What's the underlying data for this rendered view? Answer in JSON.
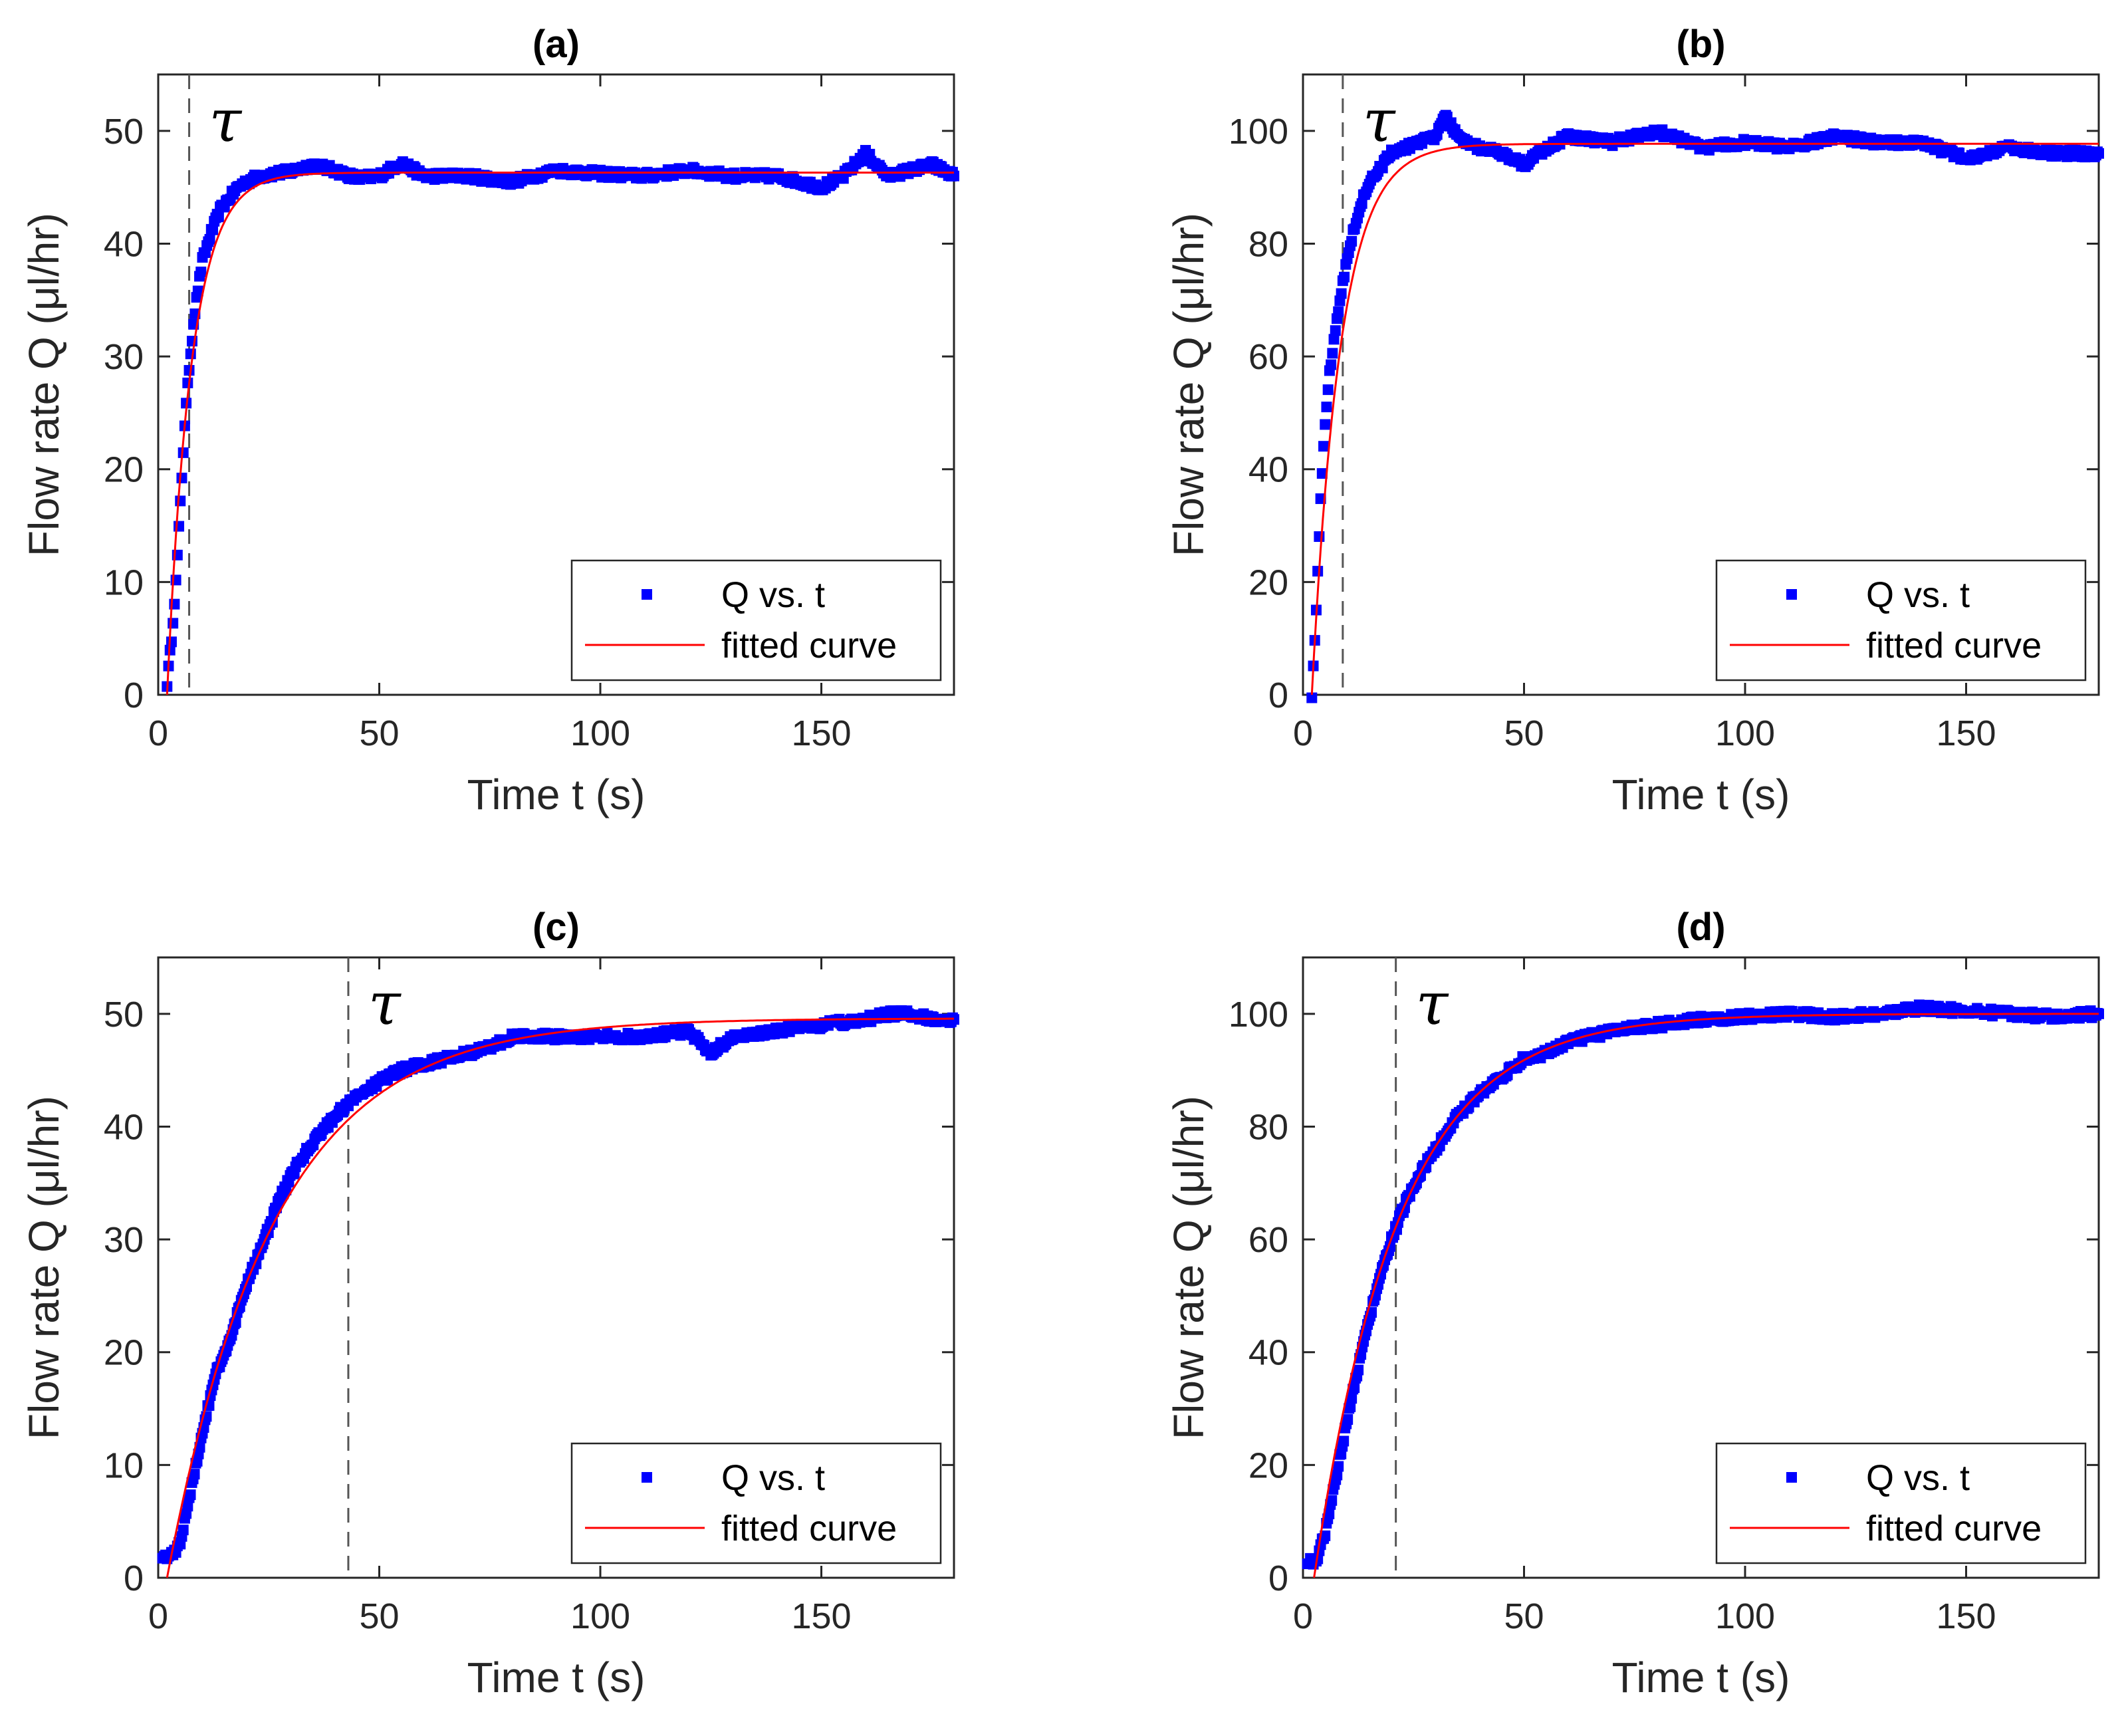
{
  "chart_data": [
    {
      "type": "scatter",
      "title": "(a)",
      "xlabel": "Time t (s)",
      "ylabel": "Flow rate Q (μl/hr)",
      "xlim": [
        0,
        180
      ],
      "ylim": [
        0,
        55
      ],
      "xticks": [
        0,
        50,
        100,
        150
      ],
      "yticks": [
        0,
        10,
        20,
        30,
        40,
        50
      ],
      "tau": 7,
      "tau_label": "τ",
      "series": [
        {
          "name": "Q vs. t",
          "color": "#0000ff",
          "x": [
            2,
            3,
            4,
            5,
            6,
            7,
            8,
            9,
            10,
            12,
            14,
            16,
            18,
            20,
            23,
            26,
            30,
            35,
            40,
            45,
            50,
            55,
            60,
            70,
            80,
            90,
            100,
            110,
            120,
            130,
            140,
            150,
            155,
            160,
            165,
            170,
            175,
            180
          ],
          "values": [
            1,
            5,
            10,
            17,
            24,
            29,
            33,
            36,
            38.5,
            41,
            43,
            44,
            45,
            45.5,
            46,
            46.2,
            46.4,
            47,
            46.5,
            45.8,
            46,
            47.2,
            46,
            46,
            45.5,
            46.5,
            46.2,
            46,
            46.5,
            46,
            46,
            45,
            46,
            48,
            46,
            46.5,
            47,
            46
          ]
        },
        {
          "name": "fitted curve",
          "color": "#ff0000",
          "model": "exp",
          "Qmax": 46.3,
          "t0": 2,
          "tau": 5.5
        }
      ],
      "legend": {
        "position": "bottom-right",
        "entries": [
          "Q vs. t",
          "fitted curve"
        ]
      }
    },
    {
      "type": "scatter",
      "title": "(b)",
      "xlabel": "Time t (s)",
      "ylabel": "Flow rate Q (μl/hr)",
      "xlim": [
        0,
        180
      ],
      "ylim": [
        0,
        110
      ],
      "xticks": [
        0,
        50,
        100,
        150
      ],
      "yticks": [
        0,
        20,
        40,
        60,
        80,
        100
      ],
      "tau": 9,
      "tau_label": "τ",
      "series": [
        {
          "name": "Q vs. t",
          "color": "#0000ff",
          "x": [
            2,
            3,
            4,
            5,
            6,
            7,
            8,
            9,
            10,
            12,
            14,
            16,
            18,
            20,
            23,
            26,
            30,
            32,
            35,
            40,
            45,
            50,
            55,
            60,
            70,
            80,
            90,
            100,
            110,
            120,
            130,
            140,
            150,
            160,
            170,
            180
          ],
          "values": [
            0,
            15,
            35,
            48,
            57,
            63,
            68,
            73,
            78,
            84,
            89,
            92,
            94,
            96,
            97,
            98,
            99,
            103,
            99,
            97,
            96,
            94,
            97,
            99,
            98,
            100,
            97,
            98,
            97,
            99,
            98,
            98,
            95,
            97,
            96,
            96
          ]
        },
        {
          "name": "fitted curve",
          "color": "#ff0000",
          "model": "exp",
          "Qmax": 97.7,
          "t0": 2,
          "tau": 6.5
        }
      ],
      "legend": {
        "position": "bottom-right",
        "entries": [
          "Q vs. t",
          "fitted curve"
        ]
      }
    },
    {
      "type": "scatter",
      "title": "(c)",
      "xlabel": "Time t (s)",
      "ylabel": "Flow rate Q (μl/hr)",
      "xlim": [
        0,
        180
      ],
      "ylim": [
        0,
        55
      ],
      "xticks": [
        0,
        50,
        100,
        150
      ],
      "yticks": [
        0,
        10,
        20,
        30,
        40,
        50
      ],
      "tau": 43,
      "tau_label": "τ",
      "series": [
        {
          "name": "Q vs. t",
          "color": "#0000ff",
          "x": [
            1,
            3,
            5,
            7,
            10,
            13,
            16,
            20,
            24,
            28,
            32,
            36,
            40,
            43,
            46,
            50,
            55,
            60,
            65,
            70,
            75,
            80,
            90,
            100,
            110,
            120,
            125,
            130,
            140,
            150,
            160,
            165,
            170,
            175,
            180
          ],
          "values": [
            2,
            2,
            3,
            7,
            13,
            18,
            21,
            26,
            30,
            34,
            37,
            39,
            41,
            42,
            43,
            44,
            45,
            45.5,
            46,
            46.5,
            47,
            48,
            48,
            48,
            48,
            48.5,
            46.5,
            48,
            48.5,
            49,
            49.5,
            50,
            50,
            49.5,
            49.5
          ]
        },
        {
          "name": "fitted curve",
          "color": "#ff0000",
          "model": "exp",
          "Qmax": 49.6,
          "t0": 2,
          "tau": 24
        }
      ],
      "legend": {
        "position": "bottom-right",
        "entries": [
          "Q vs. t",
          "fitted curve"
        ]
      }
    },
    {
      "type": "scatter",
      "title": "(d)",
      "xlabel": "Time t (s)",
      "ylabel": "Flow rate Q (μl/hr)",
      "xlim": [
        0,
        180
      ],
      "ylim": [
        0,
        110
      ],
      "xticks": [
        0,
        50,
        100,
        150
      ],
      "yticks": [
        0,
        20,
        40,
        60,
        80,
        100
      ],
      "tau": 21,
      "tau_label": "τ",
      "series": [
        {
          "name": "Q vs. t",
          "color": "#0000ff",
          "x": [
            1,
            3,
            5,
            8,
            11,
            14,
            17,
            20,
            23,
            26,
            30,
            35,
            40,
            45,
            50,
            55,
            60,
            70,
            80,
            90,
            100,
            110,
            120,
            130,
            140,
            150,
            160,
            170,
            180
          ],
          "values": [
            3,
            3,
            8,
            20,
            32,
            43,
            52,
            60,
            66,
            71,
            76,
            82,
            86,
            89,
            92,
            93,
            95,
            97,
            98,
            99,
            99.5,
            100,
            99.5,
            100,
            101,
            100.5,
            100,
            99.5,
            100
          ]
        },
        {
          "name": "fitted curve",
          "color": "#ff0000",
          "model": "exp",
          "Qmax": 100,
          "t0": 2.5,
          "tau": 19
        }
      ],
      "legend": {
        "position": "bottom-right",
        "entries": [
          "Q vs. t",
          "fitted curve"
        ]
      }
    }
  ]
}
